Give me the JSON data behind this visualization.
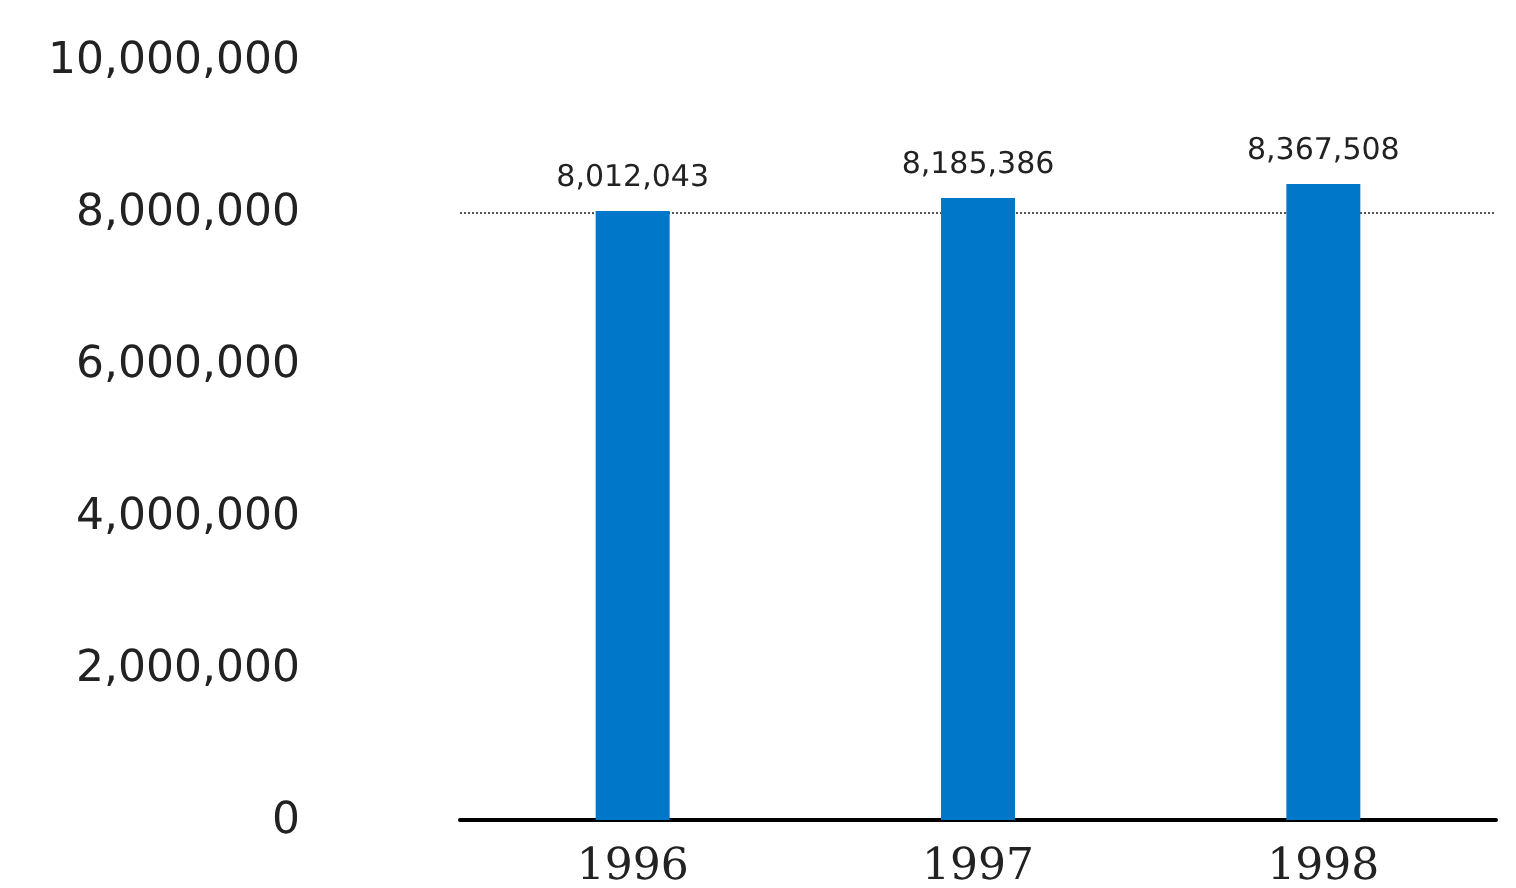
{
  "chart_data": {
    "type": "bar",
    "categories": [
      "1996",
      "1997",
      "1998"
    ],
    "values": [
      8012043,
      8185386,
      8367508
    ],
    "color": "#0077c8",
    "value_labels": [
      "8,012,043",
      "8,185,386",
      "8,367,508"
    ],
    "ylim": [
      0,
      10000000
    ],
    "yticks": [
      {
        "value": 0,
        "label": "0"
      },
      {
        "value": 2000000,
        "label": "2,000,000"
      },
      {
        "value": 4000000,
        "label": "4,000,000"
      },
      {
        "value": 6000000,
        "label": "6,000,000"
      },
      {
        "value": 8000000,
        "label": "8,000,000"
      },
      {
        "value": 10000000,
        "label": "10,000,000"
      }
    ],
    "grid": false,
    "ref_lines": [
      {
        "axis": "y",
        "value": 8000000,
        "color": "#555555",
        "line_style": "dotted"
      }
    ]
  }
}
